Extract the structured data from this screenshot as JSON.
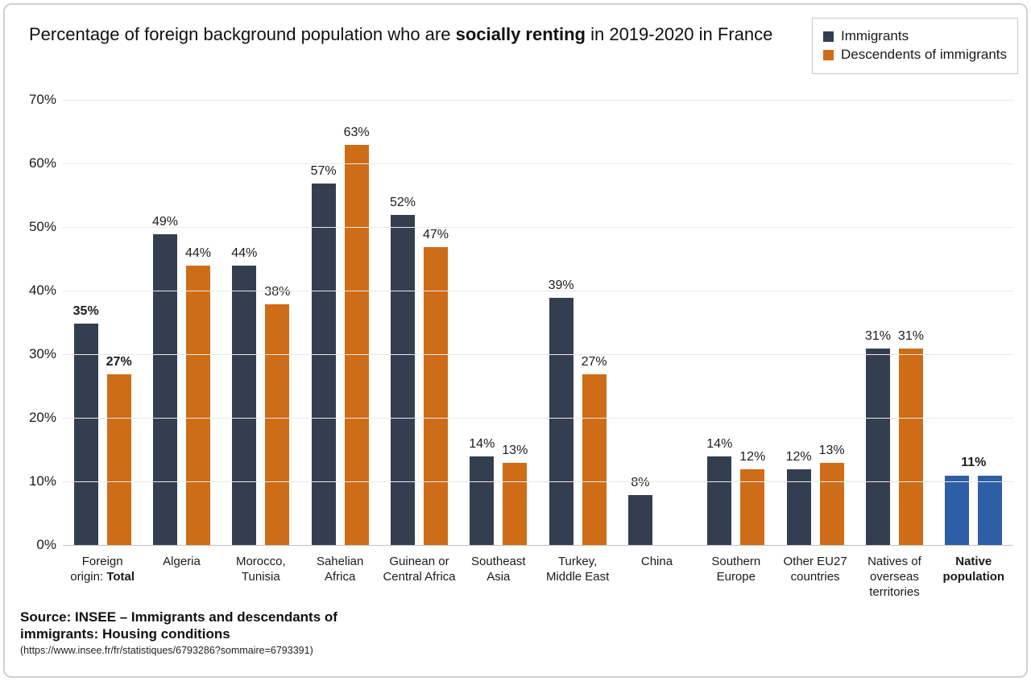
{
  "header": {
    "title_pre": "Percentage of foreign background population who are ",
    "title_bold": "socially renting",
    "title_post": " in 2019-2020 in France"
  },
  "footer": {
    "source_text": "Source: INSEE – Immigrants and descendants of immigrants: Housing conditions",
    "source_url": "(https://www.insee.fr/fr/statistiques/6793286?sommaire=6793391)"
  },
  "chart_data": {
    "type": "bar",
    "title": "Percentage of foreign background population who are socially renting in 2019-2020 in France",
    "xlabel": "",
    "ylabel": "",
    "ylim": [
      0,
      70
    ],
    "yticks": [
      0,
      10,
      20,
      30,
      40,
      50,
      60,
      70
    ],
    "ytick_suffix": "%",
    "grid": true,
    "legend_position": "top-right",
    "series": [
      {
        "name": "Immigrants",
        "color": "#333F50"
      },
      {
        "name": "Descendents of immigrants",
        "color": "#CE6C18"
      }
    ],
    "native_color": "#2E5EA6",
    "categories": [
      {
        "label": "Foreign origin: Total",
        "label_pre": "Foreign origin: ",
        "label_bold": "Total",
        "values": [
          35,
          27
        ],
        "values_bold": true
      },
      {
        "label": "Algeria",
        "values": [
          49,
          44
        ]
      },
      {
        "label": "Morocco, Tunisia",
        "values": [
          44,
          38
        ]
      },
      {
        "label": "Sahelian Africa",
        "values": [
          57,
          63
        ]
      },
      {
        "label": "Guinean or Central Africa",
        "values": [
          52,
          47
        ]
      },
      {
        "label": "Southeast Asia",
        "values": [
          14,
          13
        ]
      },
      {
        "label": "Turkey, Middle East",
        "values": [
          39,
          27
        ]
      },
      {
        "label": "China",
        "values": [
          8,
          null
        ]
      },
      {
        "label": "Southern Europe",
        "values": [
          14,
          12
        ]
      },
      {
        "label": "Other EU27 countries",
        "values": [
          12,
          13
        ]
      },
      {
        "label": "Natives of overseas territories",
        "values": [
          31,
          31
        ]
      },
      {
        "label": "Native population",
        "label_pre": "",
        "label_bold": "Native population",
        "values": [
          11,
          11
        ],
        "values_bold": true,
        "single_label": true,
        "bar_color": "#2E5EA6"
      }
    ]
  }
}
